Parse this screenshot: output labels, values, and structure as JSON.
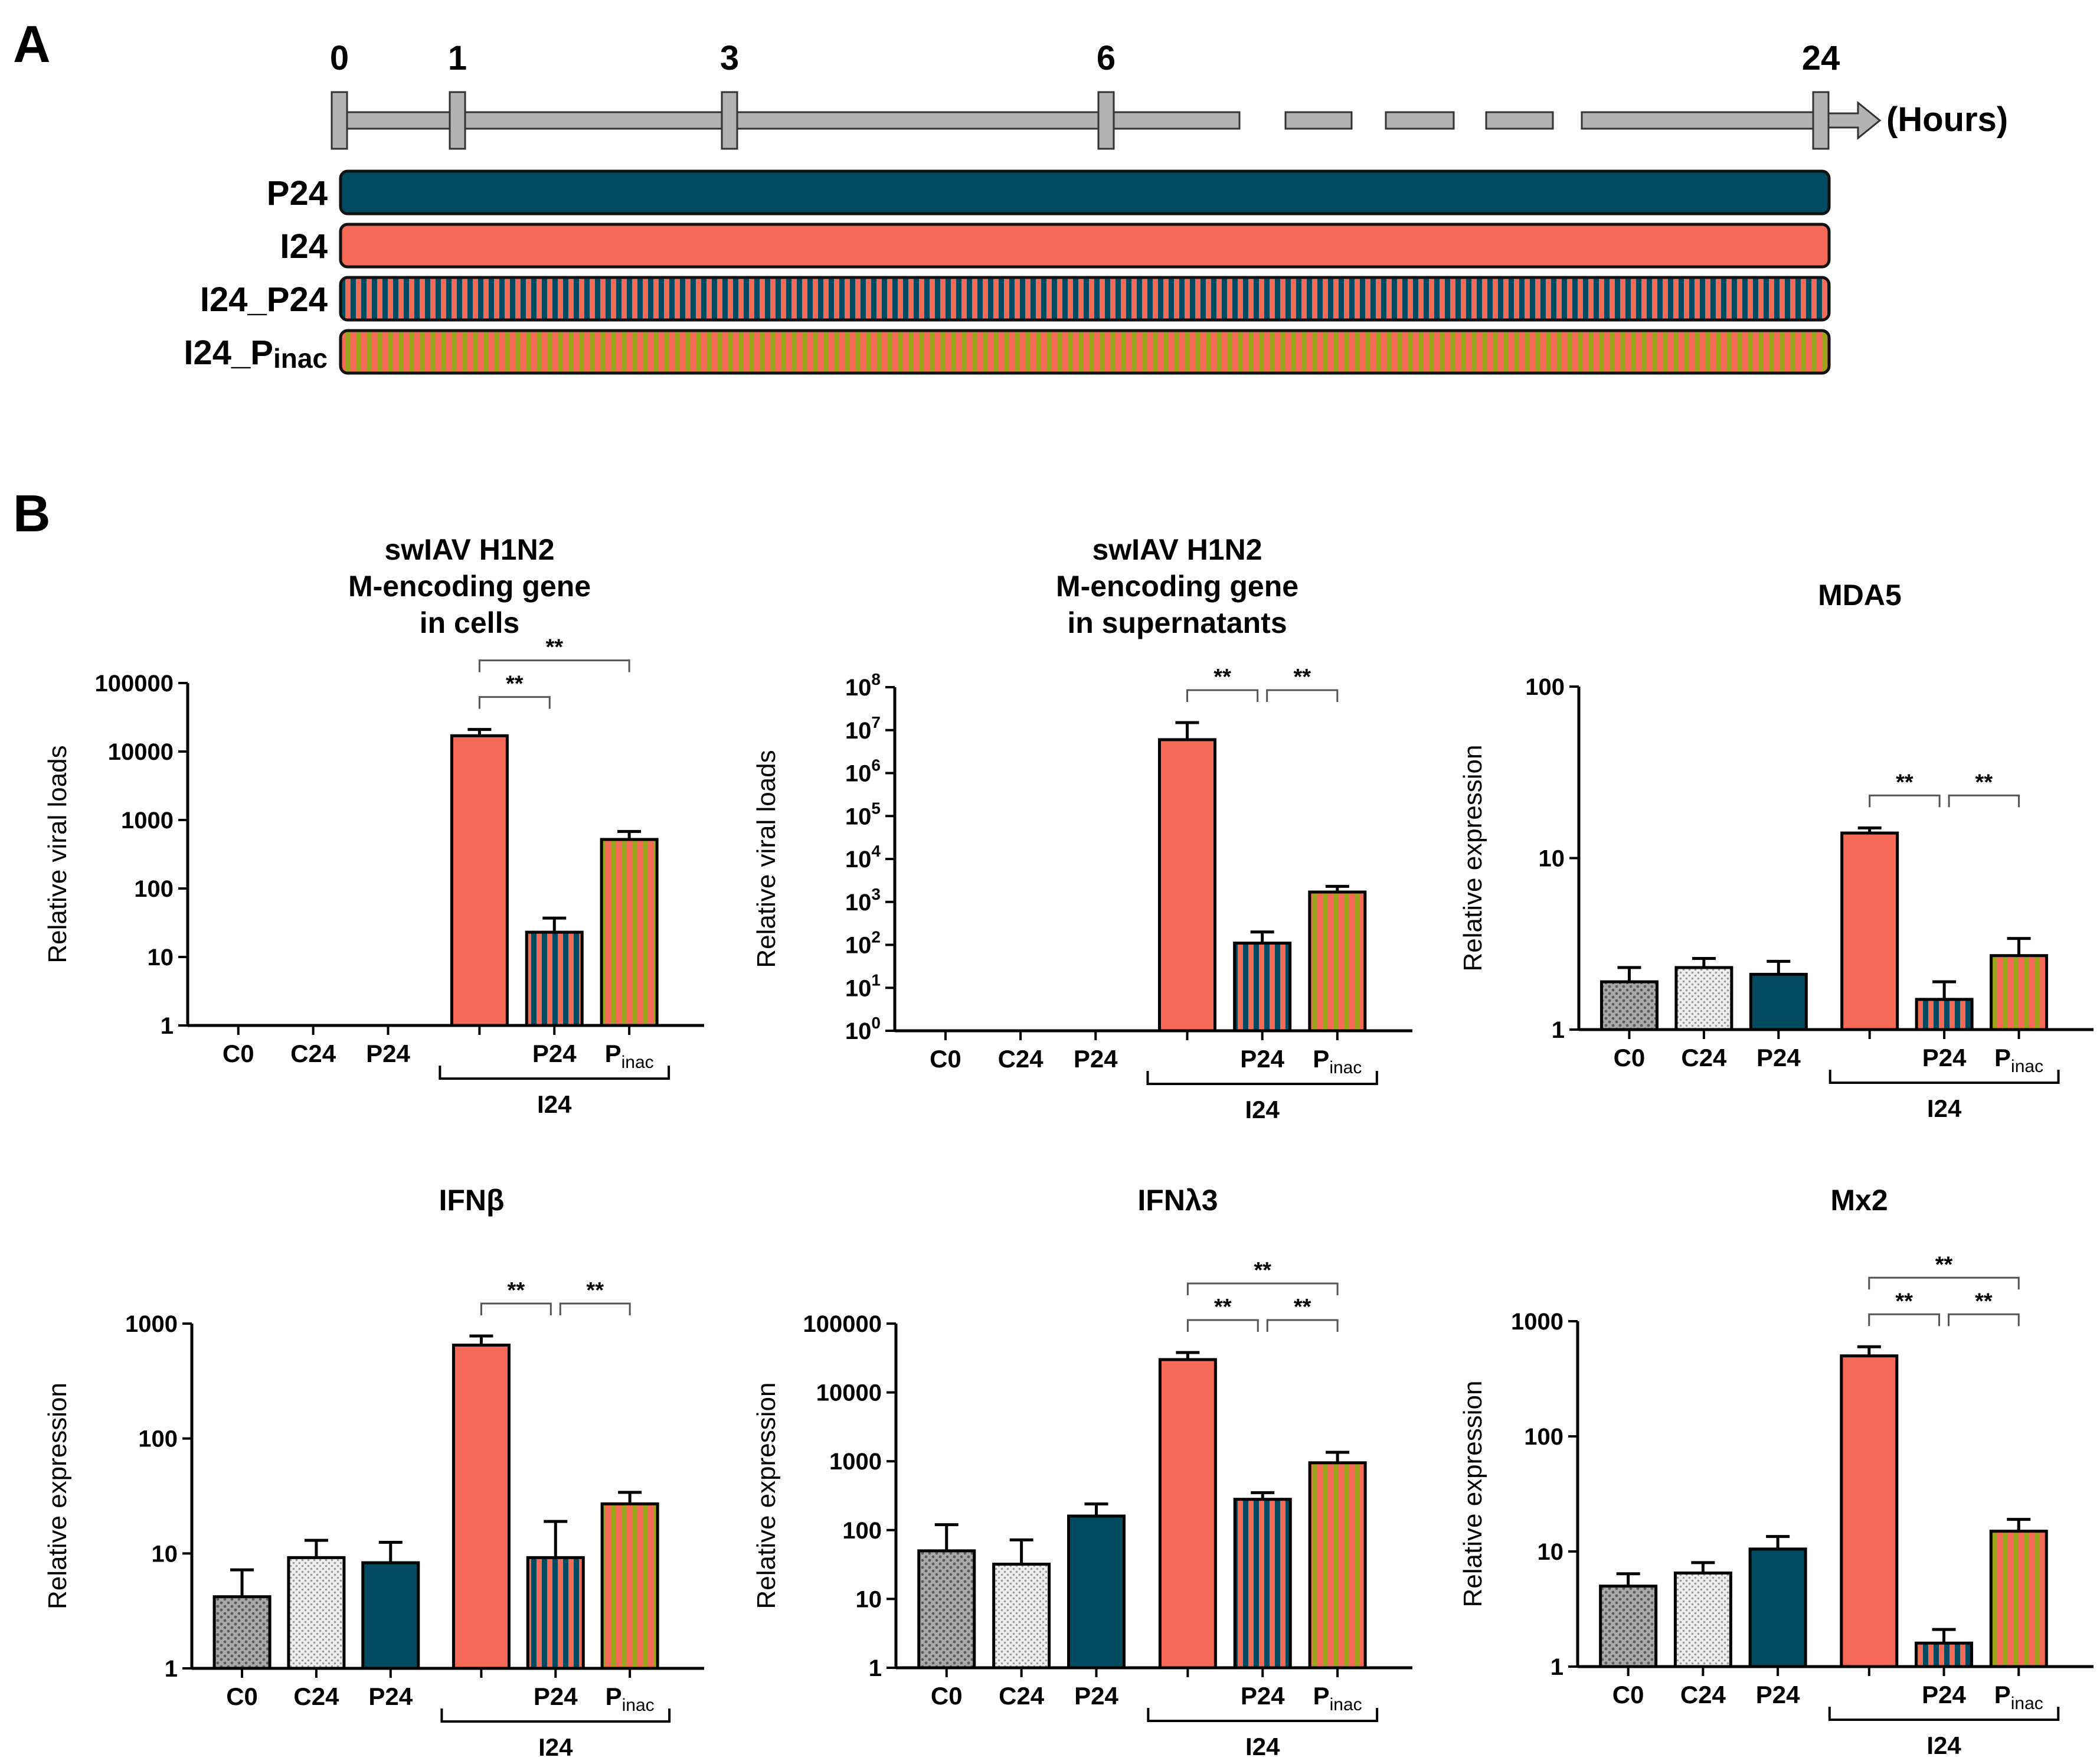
{
  "panel_a": {
    "label": "A",
    "timeline": {
      "ticks": [
        "0",
        "1",
        "3",
        "6",
        "24"
      ],
      "unit_label": "(Hours)"
    },
    "conditions": [
      {
        "label": "P24",
        "label_main": "P24",
        "label_sub": "",
        "pattern": "solid-teal"
      },
      {
        "label": "I24",
        "label_main": "I24",
        "label_sub": "",
        "pattern": "solid-salmon"
      },
      {
        "label": "I24_P24",
        "label_main": "I24_P24",
        "label_sub": "",
        "pattern": "stripe-teal-salmon"
      },
      {
        "label": "I24_Pinac",
        "label_main": "I24_P",
        "label_sub": "inac",
        "pattern": "stripe-salmon-olive"
      }
    ]
  },
  "panel_b": {
    "label": "B"
  },
  "colors": {
    "teal": "#004b5f",
    "salmon": "#f46a56",
    "olive": "#9aa51c",
    "grey_dark": "#8a8a8a",
    "grey_light": "#d7d7d7",
    "stroke": "#000000"
  },
  "chart_data": [
    {
      "type": "bar",
      "id": "c1",
      "title_lines": [
        "swIAV H1N2",
        "M-encoding gene",
        "in cells"
      ],
      "ylabel": "Relative viral loads",
      "yscale": "log",
      "ylim": [
        1,
        100000
      ],
      "yticks": [
        {
          "value": 1,
          "label": "1"
        },
        {
          "value": 10,
          "label": "10"
        },
        {
          "value": 100,
          "label": "100"
        },
        {
          "value": 1000,
          "label": "1000"
        },
        {
          "value": 10000,
          "label": "10000"
        },
        {
          "value": 100000,
          "label": "100000"
        }
      ],
      "ytick_style": "plain",
      "categories": [
        "C0",
        "C24",
        "P24",
        "I24",
        "P24",
        "Pinac"
      ],
      "category_labels": [
        {
          "main": "C0",
          "sub": ""
        },
        {
          "main": "C24",
          "sub": ""
        },
        {
          "main": "P24",
          "sub": ""
        },
        {
          "main": "",
          "sub": ""
        },
        {
          "main": "P24",
          "sub": ""
        },
        {
          "main": "P",
          "sub": "inac"
        }
      ],
      "group_label": "I24",
      "values": [
        null,
        null,
        null,
        17000,
        23,
        520
      ],
      "errors": [
        null,
        null,
        null,
        21000,
        37,
        680
      ],
      "patterns": [
        "grey-dots",
        "light-dots",
        "solid-teal",
        "solid-salmon",
        "stripe-teal-salmon",
        "stripe-salmon-olive"
      ],
      "significance": [
        {
          "from": 3,
          "to": 4,
          "label": "**",
          "level": 0
        },
        {
          "from": 3,
          "to": 5,
          "label": "**",
          "level": 1
        }
      ]
    },
    {
      "type": "bar",
      "id": "c2",
      "title_lines": [
        "swIAV H1N2",
        "M-encoding gene",
        "in supernatants"
      ],
      "ylabel": "Relative viral loads",
      "yscale": "log",
      "ylim": [
        1,
        100000000
      ],
      "yticks": [
        {
          "value": 1,
          "base": "10",
          "exp": "0"
        },
        {
          "value": 10,
          "base": "10",
          "exp": "1"
        },
        {
          "value": 100,
          "base": "10",
          "exp": "2"
        },
        {
          "value": 1000,
          "base": "10",
          "exp": "3"
        },
        {
          "value": 10000,
          "base": "10",
          "exp": "4"
        },
        {
          "value": 100000,
          "base": "10",
          "exp": "5"
        },
        {
          "value": 1000000,
          "base": "10",
          "exp": "6"
        },
        {
          "value": 10000000,
          "base": "10",
          "exp": "7"
        },
        {
          "value": 100000000,
          "base": "10",
          "exp": "8"
        }
      ],
      "ytick_style": "power",
      "categories": [
        "C0",
        "C24",
        "P24",
        "I24",
        "P24",
        "Pinac"
      ],
      "category_labels": [
        {
          "main": "C0",
          "sub": ""
        },
        {
          "main": "C24",
          "sub": ""
        },
        {
          "main": "P24",
          "sub": ""
        },
        {
          "main": "",
          "sub": ""
        },
        {
          "main": "P24",
          "sub": ""
        },
        {
          "main": "P",
          "sub": "inac"
        }
      ],
      "group_label": "I24",
      "values": [
        null,
        null,
        null,
        6000000,
        110,
        1700
      ],
      "errors": [
        null,
        null,
        null,
        15000000,
        200,
        2300
      ],
      "patterns": [
        "grey-dots",
        "light-dots",
        "solid-teal",
        "solid-salmon",
        "stripe-teal-salmon",
        "stripe-salmon-olive"
      ],
      "significance": [
        {
          "from": 3,
          "to": 4,
          "label": "**",
          "level": 0
        },
        {
          "from": 4,
          "to": 5,
          "label": "**",
          "level": 0
        }
      ]
    },
    {
      "type": "bar",
      "id": "c3",
      "title_lines": [
        "MDA5"
      ],
      "ylabel": "Relative expression",
      "yscale": "log",
      "ylim": [
        1,
        100
      ],
      "yticks": [
        {
          "value": 1,
          "label": "1"
        },
        {
          "value": 10,
          "label": "10"
        },
        {
          "value": 100,
          "label": "100"
        }
      ],
      "ytick_style": "plain",
      "categories": [
        "C0",
        "C24",
        "P24",
        "I24",
        "P24",
        "Pinac"
      ],
      "category_labels": [
        {
          "main": "C0",
          "sub": ""
        },
        {
          "main": "C24",
          "sub": ""
        },
        {
          "main": "P24",
          "sub": ""
        },
        {
          "main": "",
          "sub": ""
        },
        {
          "main": "P24",
          "sub": ""
        },
        {
          "main": "P",
          "sub": "inac"
        }
      ],
      "group_label": "I24",
      "values": [
        1.9,
        2.3,
        2.1,
        14,
        1.5,
        2.7
      ],
      "errors": [
        2.3,
        2.6,
        2.5,
        15,
        1.9,
        3.4
      ],
      "patterns": [
        "grey-dots",
        "light-dots",
        "solid-teal",
        "solid-salmon",
        "stripe-teal-salmon",
        "stripe-salmon-olive"
      ],
      "significance": [
        {
          "from": 3,
          "to": 4,
          "label": "**",
          "level": 0
        },
        {
          "from": 4,
          "to": 5,
          "label": "**",
          "level": 0
        }
      ]
    },
    {
      "type": "bar",
      "id": "c4",
      "title_lines": [
        "IFNβ"
      ],
      "ylabel": "Relative expression",
      "yscale": "log",
      "ylim": [
        1,
        1000
      ],
      "yticks": [
        {
          "value": 1,
          "label": "1"
        },
        {
          "value": 10,
          "label": "10"
        },
        {
          "value": 100,
          "label": "100"
        },
        {
          "value": 1000,
          "label": "1000"
        }
      ],
      "ytick_style": "plain",
      "categories": [
        "C0",
        "C24",
        "P24",
        "I24",
        "P24",
        "Pinac"
      ],
      "category_labels": [
        {
          "main": "C0",
          "sub": ""
        },
        {
          "main": "C24",
          "sub": ""
        },
        {
          "main": "P24",
          "sub": ""
        },
        {
          "main": "",
          "sub": ""
        },
        {
          "main": "P24",
          "sub": ""
        },
        {
          "main": "P",
          "sub": "inac"
        }
      ],
      "group_label": "I24",
      "values": [
        4.2,
        9.2,
        8.3,
        650,
        9.2,
        27
      ],
      "errors": [
        7.2,
        13,
        12.5,
        780,
        19,
        34
      ],
      "patterns": [
        "grey-dots",
        "light-dots",
        "solid-teal",
        "solid-salmon",
        "stripe-teal-salmon",
        "stripe-salmon-olive"
      ],
      "significance": [
        {
          "from": 3,
          "to": 4,
          "label": "**",
          "level": 0
        },
        {
          "from": 4,
          "to": 5,
          "label": "**",
          "level": 0
        }
      ]
    },
    {
      "type": "bar",
      "id": "c5",
      "title_lines": [
        "IFNλ3"
      ],
      "ylabel": "Relative expression",
      "yscale": "log",
      "ylim": [
        1,
        100000
      ],
      "yticks": [
        {
          "value": 1,
          "label": "1"
        },
        {
          "value": 10,
          "label": "10"
        },
        {
          "value": 100,
          "label": "100"
        },
        {
          "value": 1000,
          "label": "1000"
        },
        {
          "value": 10000,
          "label": "10000"
        },
        {
          "value": 100000,
          "label": "100000"
        }
      ],
      "ytick_style": "plain",
      "categories": [
        "C0",
        "C24",
        "P24",
        "I24",
        "P24",
        "Pinac"
      ],
      "category_labels": [
        {
          "main": "C0",
          "sub": ""
        },
        {
          "main": "C24",
          "sub": ""
        },
        {
          "main": "P24",
          "sub": ""
        },
        {
          "main": "",
          "sub": ""
        },
        {
          "main": "P24",
          "sub": ""
        },
        {
          "main": "P",
          "sub": "inac"
        }
      ],
      "group_label": "I24",
      "values": [
        50,
        32,
        160,
        30000,
        280,
        950
      ],
      "errors": [
        120,
        72,
        240,
        38000,
        350,
        1350
      ],
      "patterns": [
        "grey-dots",
        "light-dots",
        "solid-teal",
        "solid-salmon",
        "stripe-teal-salmon",
        "stripe-salmon-olive"
      ],
      "significance": [
        {
          "from": 3,
          "to": 4,
          "label": "**",
          "level": 0
        },
        {
          "from": 4,
          "to": 5,
          "label": "**",
          "level": 0
        },
        {
          "from": 3,
          "to": 5,
          "label": "**",
          "level": 1
        }
      ]
    },
    {
      "type": "bar",
      "id": "c6",
      "title_lines": [
        "Mx2"
      ],
      "ylabel": "Relative expression",
      "yscale": "log",
      "ylim": [
        1,
        1000
      ],
      "yticks": [
        {
          "value": 1,
          "label": "1"
        },
        {
          "value": 10,
          "label": "10"
        },
        {
          "value": 100,
          "label": "100"
        },
        {
          "value": 1000,
          "label": "1000"
        }
      ],
      "ytick_style": "plain",
      "categories": [
        "C0",
        "C24",
        "P24",
        "I24",
        "P24",
        "Pinac"
      ],
      "category_labels": [
        {
          "main": "C0",
          "sub": ""
        },
        {
          "main": "C24",
          "sub": ""
        },
        {
          "main": "P24",
          "sub": ""
        },
        {
          "main": "",
          "sub": ""
        },
        {
          "main": "P24",
          "sub": ""
        },
        {
          "main": "P",
          "sub": "inac"
        }
      ],
      "group_label": "I24",
      "values": [
        5.0,
        6.5,
        10.5,
        500,
        1.6,
        15
      ],
      "errors": [
        6.4,
        8.0,
        13.5,
        600,
        2.1,
        19
      ],
      "patterns": [
        "grey-dots",
        "light-dots",
        "solid-teal",
        "solid-salmon",
        "stripe-teal-salmon",
        "stripe-salmon-olive"
      ],
      "significance": [
        {
          "from": 3,
          "to": 4,
          "label": "**",
          "level": 0
        },
        {
          "from": 4,
          "to": 5,
          "label": "**",
          "level": 0
        },
        {
          "from": 3,
          "to": 5,
          "label": "**",
          "level": 1
        }
      ]
    }
  ]
}
